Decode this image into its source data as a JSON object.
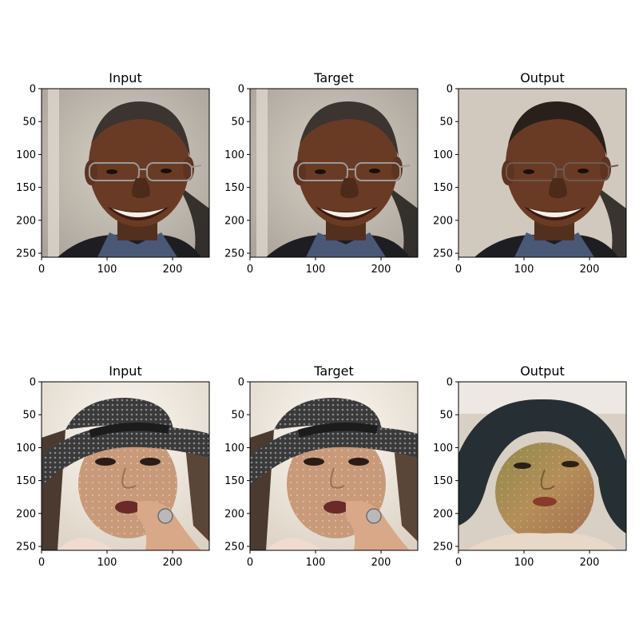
{
  "figure": {
    "rows": [
      {
        "panels": [
          {
            "title": "Input",
            "image": "portrait-man-glasses-smiling",
            "x_ticks": [
              "0",
              "100",
              "200"
            ],
            "y_ticks": [
              "0",
              "50",
              "100",
              "150",
              "200",
              "250"
            ]
          },
          {
            "title": "Target",
            "image": "portrait-man-glasses-smiling",
            "x_ticks": [
              "0",
              "100",
              "200"
            ],
            "y_ticks": [
              "0",
              "50",
              "100",
              "150",
              "200",
              "250"
            ]
          },
          {
            "title": "Output",
            "image": "generated-man-glasses-smiling",
            "x_ticks": [
              "0",
              "100",
              "200"
            ],
            "y_ticks": [
              "0",
              "50",
              "100",
              "150",
              "200",
              "250"
            ]
          }
        ]
      },
      {
        "panels": [
          {
            "title": "Input",
            "image": "portrait-woman-black-hat",
            "x_ticks": [
              "0",
              "100",
              "200"
            ],
            "y_ticks": [
              "0",
              "50",
              "100",
              "150",
              "200",
              "250"
            ]
          },
          {
            "title": "Target",
            "image": "portrait-woman-black-hat",
            "x_ticks": [
              "0",
              "100",
              "200"
            ],
            "y_ticks": [
              "0",
              "50",
              "100",
              "150",
              "200",
              "250"
            ]
          },
          {
            "title": "Output",
            "image": "generated-woman-dark-hair",
            "x_ticks": [
              "0",
              "100",
              "200"
            ],
            "y_ticks": [
              "0",
              "50",
              "100",
              "150",
              "200",
              "250"
            ]
          }
        ]
      }
    ]
  },
  "colors": {
    "bg_gray": "#c7c2b9",
    "skin_dark": "#6a3b24",
    "hair_dark": "#3c3430",
    "hat_dark": "#3a3a3a",
    "skin_light": "#c89a7a",
    "output_skin": "#b08a55",
    "bg_cream": "#f1ece3"
  }
}
